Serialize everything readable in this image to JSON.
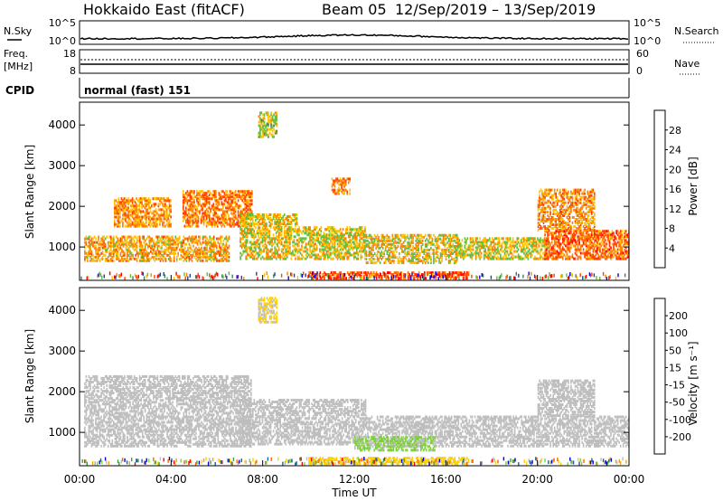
{
  "header": {
    "title": "Hokkaido East (fitACF)",
    "beam": "Beam 05",
    "date_range": "12/Sep/2019 – 13/Sep/2019"
  },
  "noise_panel": {
    "left_label": "N.Sky",
    "right_label": "N.Search",
    "ticks_left": [
      "10^5",
      "10^0"
    ],
    "ticks_right": [
      "10^5",
      "10^0"
    ]
  },
  "freq_panel": {
    "left_label_1": "Freq.",
    "left_label_2": "[MHz]",
    "right_label": "Nave",
    "ticks_left": [
      "18",
      "8"
    ],
    "ticks_right": [
      "60",
      "0"
    ]
  },
  "cpid": {
    "label": "CPID",
    "value": "normal (fast) 151"
  },
  "colors": {
    "power": [
      "#0000ff",
      "#1f3f9f",
      "#3f7f5f",
      "#5fbf3f",
      "#ffbf00",
      "#ff8000",
      "#ff4000",
      "#ff0000"
    ],
    "velocity": [
      "#ff0000",
      "#ff6000",
      "#ff9f00",
      "#ffcf00",
      "#bebebe",
      "#7fcf3f",
      "#3f9f3f",
      "#1f5f9f",
      "#0000cf"
    ]
  },
  "chart_data": [
    {
      "type": "heatmap",
      "panel": "power",
      "ylabel": "Slant Range [km]",
      "yticks": [
        1000,
        2000,
        3000,
        4000
      ],
      "ylim": [
        180,
        4560
      ],
      "xlim": [
        0,
        24
      ],
      "colorbar_label": "Power [dB]",
      "colorbar_ticks": [
        "4",
        "8",
        "12",
        "16",
        "20",
        "24",
        "28"
      ],
      "clim": [
        0,
        32
      ],
      "echo_regions": [
        {
          "t0": 0.2,
          "t1": 6.5,
          "r0": 650,
          "r1": 1250,
          "power": 20
        },
        {
          "t0": 1.5,
          "t1": 4.0,
          "r0": 1500,
          "r1": 2200,
          "power": 21
        },
        {
          "t0": 4.5,
          "t1": 7.5,
          "r0": 1500,
          "r1": 2400,
          "power": 23
        },
        {
          "t0": 7.0,
          "t1": 9.5,
          "r0": 700,
          "r1": 1800,
          "power": 18
        },
        {
          "t0": 9.5,
          "t1": 12.5,
          "r0": 700,
          "r1": 1500,
          "power": 17
        },
        {
          "t0": 10.0,
          "t1": 17.0,
          "r0": 220,
          "r1": 360,
          "power": 26
        },
        {
          "t0": 12.5,
          "t1": 16.5,
          "r0": 600,
          "r1": 1300,
          "power": 18
        },
        {
          "t0": 16.5,
          "t1": 20.5,
          "r0": 700,
          "r1": 1200,
          "power": 17
        },
        {
          "t0": 20.3,
          "t1": 24.0,
          "r0": 700,
          "r1": 1400,
          "power": 24
        },
        {
          "t0": 20.0,
          "t1": 22.5,
          "r0": 1400,
          "r1": 2400,
          "power": 21
        },
        {
          "t0": 7.8,
          "t1": 8.6,
          "r0": 3700,
          "r1": 4300,
          "power": 16
        },
        {
          "t0": 11.0,
          "t1": 11.8,
          "r0": 2300,
          "r1": 2700,
          "power": 22
        }
      ]
    },
    {
      "type": "heatmap",
      "panel": "velocity",
      "ylabel": "Slant Range [km]",
      "xlabel": "Time UT",
      "yticks": [
        1000,
        2000,
        3000,
        4000
      ],
      "ylim": [
        180,
        4560
      ],
      "xlim": [
        0,
        24
      ],
      "xticks": [
        "00:00",
        "04:00",
        "08:00",
        "12:00",
        "16:00",
        "20:00",
        "00:00"
      ],
      "colorbar_label": "Velocity [m s⁻¹]",
      "colorbar_ticks": [
        "-200",
        "-100",
        "-50",
        "-15",
        "15",
        "50",
        "100",
        "200"
      ],
      "clim": [
        -250,
        250
      ],
      "echo_regions": [
        {
          "t0": 0.2,
          "t1": 7.5,
          "r0": 650,
          "r1": 2400,
          "velocity": 0
        },
        {
          "t0": 7.0,
          "t1": 12.5,
          "r0": 700,
          "r1": 1800,
          "velocity": 0
        },
        {
          "t0": 12.5,
          "t1": 24.0,
          "r0": 650,
          "r1": 1400,
          "velocity": 0
        },
        {
          "t0": 20.0,
          "t1": 22.5,
          "r0": 1400,
          "r1": 2300,
          "velocity": 0
        },
        {
          "t0": 10.0,
          "t1": 17.0,
          "r0": 220,
          "r1": 360,
          "velocity": -60
        },
        {
          "t0": 12.0,
          "t1": 15.5,
          "r0": 550,
          "r1": 900,
          "velocity": 40
        },
        {
          "t0": 7.8,
          "t1": 8.6,
          "r0": 3700,
          "r1": 4300,
          "velocity": -30
        }
      ]
    }
  ]
}
